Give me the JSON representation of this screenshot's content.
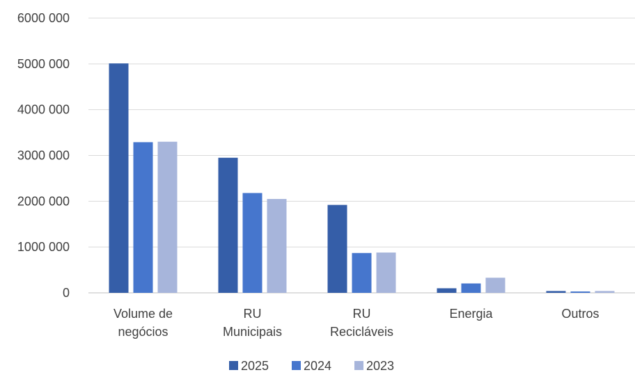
{
  "chart_data": {
    "type": "bar",
    "title": "",
    "xlabel": "",
    "ylabel": "",
    "ylim": [
      0,
      6000000
    ],
    "yticks": [
      0,
      1000000,
      2000000,
      3000000,
      4000000,
      5000000,
      6000000
    ],
    "ytick_labels": [
      "0",
      "1000 000",
      "2000 000",
      "3000 000",
      "4000 000",
      "5000 000",
      "6000 000"
    ],
    "categories": [
      [
        "Volume de",
        "negócios"
      ],
      [
        "RU",
        "Municipais"
      ],
      [
        "RU",
        "Recicláveis"
      ],
      [
        "Energia"
      ],
      [
        "Outros"
      ]
    ],
    "series": [
      {
        "name": "2025",
        "color": "#355EA8",
        "values": [
          5010000,
          2950000,
          1920000,
          100000,
          40000
        ]
      },
      {
        "name": "2024",
        "color": "#4676CD",
        "values": [
          3290000,
          2180000,
          870000,
          205000,
          30000
        ]
      },
      {
        "name": "2023",
        "color": "#A7B5DB",
        "values": [
          3300000,
          2050000,
          880000,
          330000,
          40000
        ]
      }
    ],
    "grid": true,
    "legend_position": "bottom"
  }
}
